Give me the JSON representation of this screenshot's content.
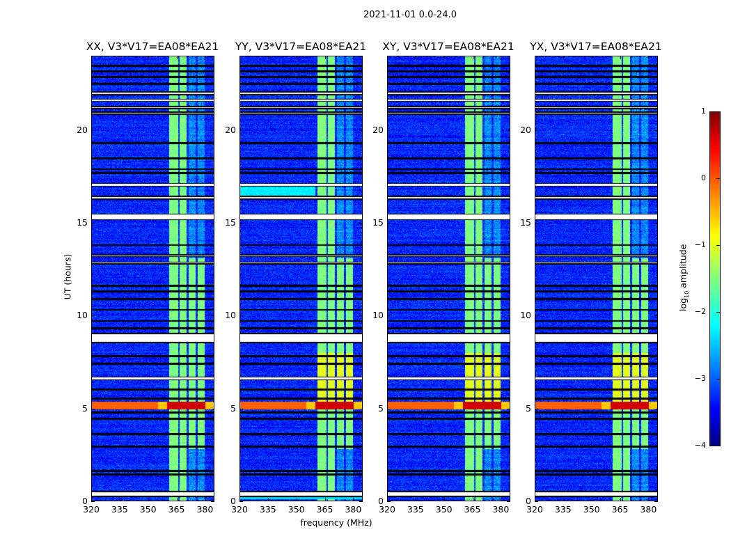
{
  "chart_data": {
    "type": "heatmap",
    "suptitle": "2021-11-01 0.0-24.0",
    "xlabel": "frequency (MHz)",
    "ylabel": "UT (hours)",
    "xlim": [
      320,
      385
    ],
    "ylim": [
      0,
      24
    ],
    "xticks": [
      "320",
      "335",
      "350",
      "365",
      "380"
    ],
    "yticks": [
      "0",
      "5",
      "10",
      "15",
      "20"
    ],
    "panels": [
      {
        "title": "XX, V3*V17=EA08*EA21"
      },
      {
        "title": "YY, V3*V17=EA08*EA21"
      },
      {
        "title": "XY, V3*V17=EA08*EA21"
      },
      {
        "title": "YX, V3*V17=EA08*EA21"
      }
    ],
    "colorbar": {
      "label": "log",
      "label_sub": "10",
      "label_tail": " amplitude",
      "range": [
        -4,
        1
      ],
      "ticks": [
        "1",
        "0",
        "−1",
        "−2",
        "−3",
        "−4"
      ],
      "colormap": "jet"
    },
    "background_level": -3.2,
    "rfi_channels_mhz": [
      [
        361,
        366
      ],
      [
        366.5,
        370.2
      ],
      [
        371.6,
        375.3
      ],
      [
        376.4,
        380
      ]
    ],
    "rfi_level": -1.5,
    "strong_rfi_band_hours": [
      4.95,
      5.35
    ],
    "flagged_hours": [
      [
        0.25,
        0.5
      ],
      [
        1.4,
        1.45
      ],
      [
        1.6,
        1.65
      ],
      [
        2.9,
        2.95
      ],
      [
        3.6,
        3.65
      ],
      [
        4.4,
        4.45
      ],
      [
        4.75,
        4.8
      ],
      [
        5.5,
        5.55
      ],
      [
        6.0,
        6.05
      ],
      [
        6.55,
        6.7
      ],
      [
        7.4,
        7.45
      ],
      [
        7.8,
        7.85
      ],
      [
        8.55,
        9.05
      ],
      [
        9.3,
        9.35
      ],
      [
        9.7,
        9.75
      ],
      [
        10.3,
        10.35
      ],
      [
        10.9,
        10.95
      ],
      [
        11.3,
        11.35
      ],
      [
        11.6,
        11.65
      ],
      [
        12.8,
        12.9
      ],
      [
        13.2,
        13.3
      ],
      [
        13.8,
        13.85
      ],
      [
        15.2,
        15.5
      ],
      [
        16.3,
        16.45
      ],
      [
        17.0,
        17.15
      ],
      [
        17.7,
        17.75
      ],
      [
        17.9,
        17.95
      ],
      [
        18.5,
        18.55
      ],
      [
        19.3,
        19.35
      ],
      [
        20.9,
        21.0
      ],
      [
        21.2,
        21.3
      ],
      [
        21.6,
        21.7
      ],
      [
        21.95,
        22.1
      ],
      [
        22.5,
        22.55
      ],
      [
        22.9,
        22.95
      ],
      [
        23.2,
        23.25
      ],
      [
        23.5,
        23.55
      ]
    ]
  }
}
